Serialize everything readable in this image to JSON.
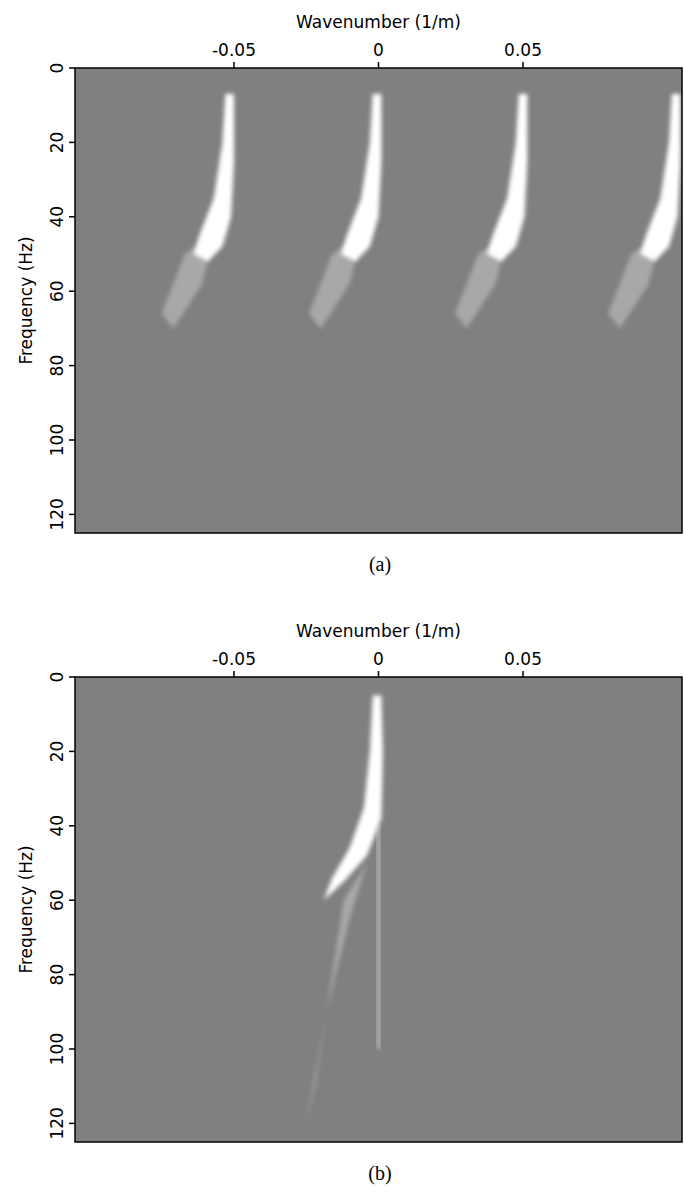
{
  "chart_data": [
    {
      "type": "area",
      "title": "(a)",
      "x_label": "Wavenumber (1/m)",
      "y_label": "Frequency (Hz)",
      "xlim": [
        -0.105,
        0.105
      ],
      "ylim": [
        0,
        125
      ],
      "xticks": [
        -0.05,
        0,
        0.05
      ],
      "yticks": [
        0,
        20,
        40,
        60,
        80,
        100,
        120
      ],
      "color": "#808080",
      "series": [
        {
          "color": "#a8a8a8",
          "x": [
            -0.006,
            -0.01,
            -0.02,
            -0.024,
            -0.016
          ],
          "values": [
            45,
            58,
            70,
            66,
            50
          ]
        },
        {
          "color": "#a8a8a8",
          "x": [
            -0.057,
            -0.061,
            -0.071,
            -0.075,
            -0.067
          ],
          "values": [
            45,
            58,
            70,
            66,
            50
          ]
        },
        {
          "color": "#a8a8a8",
          "x": [
            0.0445,
            0.0405,
            0.0305,
            0.0265,
            0.0345
          ],
          "values": [
            45,
            58,
            70,
            66,
            50
          ]
        },
        {
          "color": "#a8a8a8",
          "x": [
            0.0975,
            0.0935,
            0.0835,
            0.0795,
            0.0875
          ],
          "values": [
            45,
            58,
            70,
            66,
            50
          ]
        },
        {
          "color": "#ffffff",
          "x": [
            0.001,
            0.001,
            0.0,
            -0.003,
            -0.008,
            -0.013,
            -0.011,
            -0.006,
            -0.003,
            -0.002
          ],
          "values": [
            7,
            25,
            40,
            48,
            52,
            50,
            45,
            35,
            20,
            7
          ]
        },
        {
          "color": "#ffffff",
          "x": [
            -0.05,
            -0.05,
            -0.051,
            -0.054,
            -0.059,
            -0.064,
            -0.062,
            -0.057,
            -0.054,
            -0.053
          ],
          "values": [
            7,
            25,
            40,
            48,
            52,
            50,
            45,
            35,
            20,
            7
          ]
        },
        {
          "color": "#ffffff",
          "x": [
            0.0515,
            0.0515,
            0.0505,
            0.0475,
            0.0425,
            0.0375,
            0.0395,
            0.0445,
            0.0475,
            0.0485
          ],
          "values": [
            7,
            25,
            40,
            48,
            52,
            50,
            45,
            35,
            20,
            7
          ]
        },
        {
          "color": "#ffffff",
          "x": [
            0.1045,
            0.1045,
            0.1035,
            0.1005,
            0.0955,
            0.0905,
            0.0925,
            0.0975,
            0.1005,
            0.1015
          ],
          "values": [
            7,
            25,
            40,
            48,
            52,
            50,
            45,
            35,
            20,
            7
          ]
        }
      ]
    },
    {
      "type": "area",
      "title": "(b)",
      "x_label": "Wavenumber (1/m)",
      "y_label": "Frequency (Hz)",
      "xlim": [
        -0.105,
        0.105
      ],
      "ylim": [
        0,
        125
      ],
      "xticks": [
        -0.05,
        0,
        0.05
      ],
      "yticks": [
        0,
        20,
        40,
        60,
        80,
        100,
        120
      ],
      "color": "#808080",
      "series": [
        {
          "color": "#a8a8a8",
          "x": [
            -0.004,
            -0.01,
            -0.018,
            -0.025,
            -0.022,
            -0.012
          ],
          "values": [
            50,
            65,
            90,
            120,
            110,
            60
          ]
        },
        {
          "color": "#c8c8c8",
          "x": [
            0.0005,
            0.0005,
            -0.0005,
            -0.0005
          ],
          "values": [
            40,
            100,
            100,
            40
          ]
        },
        {
          "color": "#ffffff",
          "x": [
            0.001,
            0.0015,
            0.001,
            -0.004,
            -0.012,
            -0.019,
            -0.016,
            -0.01,
            -0.005,
            -0.003,
            -0.002
          ],
          "values": [
            5,
            20,
            38,
            48,
            55,
            60,
            54,
            46,
            35,
            20,
            5
          ]
        }
      ]
    }
  ]
}
